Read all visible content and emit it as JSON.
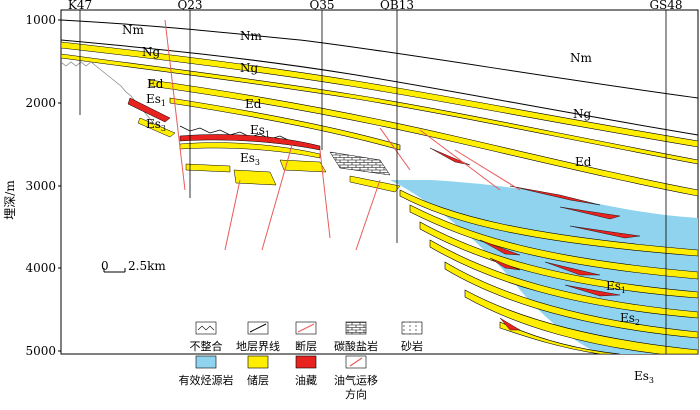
{
  "wells": [
    {
      "id": "K47",
      "label": "K47"
    },
    {
      "id": "Q23",
      "label": "Q23"
    },
    {
      "id": "Q35",
      "label": "Q35"
    },
    {
      "id": "QB13",
      "label": "QB13"
    },
    {
      "id": "GS48",
      "label": "GS48"
    }
  ],
  "depth_axis": {
    "label": "埋深/m",
    "ticks": [
      "1000",
      "2000",
      "3000",
      "4000",
      "5000"
    ]
  },
  "scale_bar": {
    "zero": "0",
    "end": "2.5km"
  },
  "layer_labels": {
    "nm_1": "Nm",
    "nm_2": "Nm",
    "nm_3": "Nm",
    "ng_1": "Ng",
    "ng_2": "Ng",
    "ng_3": "Ng",
    "ed_1": "Ed",
    "ed_2": "Ed",
    "ed_3": "Ed",
    "es1_left": "Es",
    "es1_left_sub": "1",
    "es3_left": "Es",
    "es3_left_sub": "3",
    "es1_mid": "Es",
    "es1_mid_sub": "1",
    "es3_mid": "Es",
    "es3_mid_sub": "3",
    "es1_right": "Es",
    "es1_right_sub": "1",
    "es2_right": "Es",
    "es2_right_sub": "2",
    "es3_right": "Es",
    "es3_right_sub": "3"
  },
  "legend": {
    "unconformity": "不整合",
    "boundary": "地层界线",
    "fault": "断层",
    "carbonate": "碳酸盐岩",
    "sandstone": "砂岩",
    "source_rock": "有效烃源岩",
    "reservoir": "储层",
    "oil_pool": "油藏",
    "migration": "油气运移",
    "migration_2": "方向"
  },
  "colors": {
    "source_rock": "#8fd3ee",
    "reservoir": "#ffee00",
    "oil": "#e8231f",
    "fault": "#e85a5a"
  }
}
